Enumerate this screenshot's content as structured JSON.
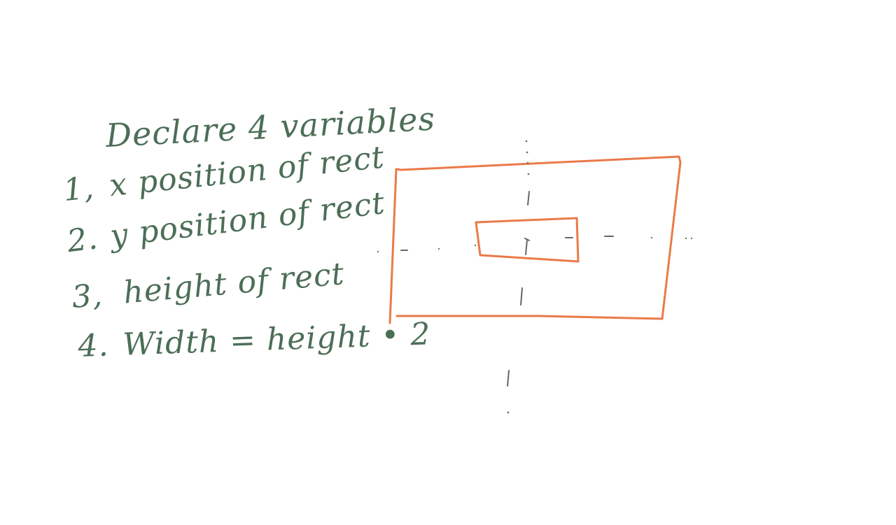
{
  "notes": {
    "title": "Declare 4 variables",
    "items": [
      {
        "number": "1,",
        "text": "x  position of rect"
      },
      {
        "number": "2.",
        "text": "y position of rect"
      },
      {
        "number": "3,",
        "text": "height of rect"
      },
      {
        "number": "4.",
        "text": "Width = height • 2"
      }
    ]
  },
  "drawing": {
    "rect_color": "#ea7a49",
    "ink_color": "#4c6e56",
    "guide_color": "#666666"
  }
}
